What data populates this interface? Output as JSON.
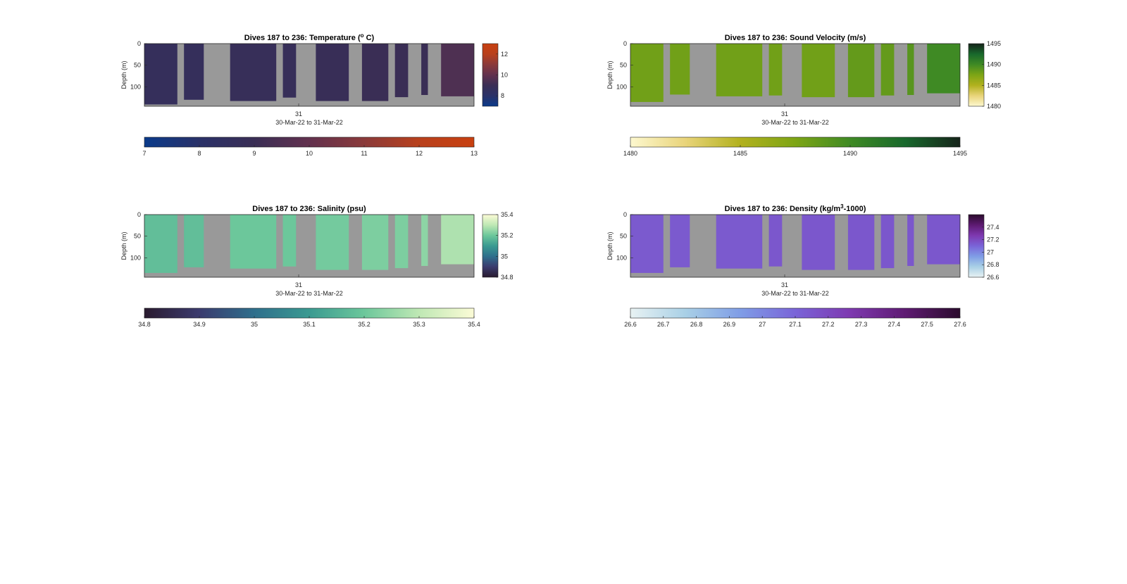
{
  "chart_data": [
    {
      "type": "heatmap",
      "title_main": "Dives 187 to 236: Temperature (",
      "title_sup": "o",
      "title_tail": " C)",
      "ylabel": "Depth (m)",
      "xlabel": "30-Mar-22 to 31-Mar-22",
      "x_tick_label": "31",
      "y_ticks": [
        0,
        50,
        100
      ],
      "ylim": [
        0,
        145
      ],
      "background": "#999999",
      "colormap": [
        "#0a3a8a",
        "#2a3168",
        "#3a2e55",
        "#62314e",
        "#8a3a3a",
        "#b8401c",
        "#c84010"
      ],
      "clim": [
        7,
        13
      ],
      "side_colorbar_ticks": [
        "8",
        "10",
        "12"
      ],
      "bottom_colorbar_ticks": [
        "7",
        "8",
        "9",
        "10",
        "11",
        "12",
        "13"
      ],
      "dives": [
        {
          "x0": 0.0,
          "x1": 0.1,
          "depth_max": 141,
          "value": 8.7
        },
        {
          "x0": 0.12,
          "x1": 0.18,
          "depth_max": 130,
          "value": 8.7
        },
        {
          "x0": 0.26,
          "x1": 0.4,
          "depth_max": 133,
          "value": 8.8
        },
        {
          "x0": 0.42,
          "x1": 0.46,
          "depth_max": 125,
          "value": 8.8
        },
        {
          "x0": 0.52,
          "x1": 0.62,
          "depth_max": 133,
          "value": 8.9
        },
        {
          "x0": 0.66,
          "x1": 0.74,
          "depth_max": 133,
          "value": 9.0
        },
        {
          "x0": 0.76,
          "x1": 0.8,
          "depth_max": 124,
          "value": 9.0
        },
        {
          "x0": 0.84,
          "x1": 0.86,
          "depth_max": 119,
          "value": 9.0
        },
        {
          "x0": 0.9,
          "x1": 1.0,
          "depth_max": 122,
          "value": 9.5
        }
      ]
    },
    {
      "type": "heatmap",
      "title_main": "Dives 187 to 236: Sound Velocity (m/s)",
      "title_sup": "",
      "title_tail": "",
      "ylabel": "Depth (m)",
      "xlabel": "30-Mar-22 to 31-Mar-22",
      "x_tick_label": "31",
      "y_ticks": [
        0,
        50,
        100
      ],
      "ylim": [
        0,
        145
      ],
      "background": "#999999",
      "colormap": [
        "#fdf8cf",
        "#e9d47a",
        "#b2b11e",
        "#7da515",
        "#3f8a24",
        "#18682c",
        "#16241a"
      ],
      "clim": [
        1480,
        1495
      ],
      "side_colorbar_ticks": [
        "1480",
        "1485",
        "1490",
        "1495"
      ],
      "bottom_colorbar_ticks": [
        "1480",
        "1485",
        "1490",
        "1495"
      ],
      "dives": [
        {
          "x0": 0.0,
          "x1": 0.1,
          "depth_max": 135,
          "value": 1488
        },
        {
          "x0": 0.12,
          "x1": 0.18,
          "depth_max": 118,
          "value": 1488
        },
        {
          "x0": 0.26,
          "x1": 0.4,
          "depth_max": 122,
          "value": 1488
        },
        {
          "x0": 0.42,
          "x1": 0.46,
          "depth_max": 120,
          "value": 1488
        },
        {
          "x0": 0.52,
          "x1": 0.62,
          "depth_max": 124,
          "value": 1488
        },
        {
          "x0": 0.66,
          "x1": 0.74,
          "depth_max": 124,
          "value": 1488.5
        },
        {
          "x0": 0.76,
          "x1": 0.8,
          "depth_max": 120,
          "value": 1488.5
        },
        {
          "x0": 0.84,
          "x1": 0.86,
          "depth_max": 119,
          "value": 1489
        },
        {
          "x0": 0.9,
          "x1": 1.0,
          "depth_max": 115,
          "value": 1490
        }
      ]
    },
    {
      "type": "heatmap",
      "title_main": "Dives 187 to 236: Salinity (psu)",
      "title_sup": "",
      "title_tail": "",
      "ylabel": "Depth (m)",
      "xlabel": "30-Mar-22 to 31-Mar-22",
      "x_tick_label": "31",
      "y_ticks": [
        0,
        50,
        100
      ],
      "ylim": [
        0,
        145
      ],
      "background": "#999999",
      "colormap": [
        "#2a1b2f",
        "#3b3b6e",
        "#2f6f8c",
        "#3a9a91",
        "#6cc79b",
        "#bfe8b4",
        "#fbfbd6"
      ],
      "clim": [
        34.8,
        35.4
      ],
      "side_colorbar_ticks": [
        "34.8",
        "35",
        "35.2",
        "35.4"
      ],
      "bottom_colorbar_ticks": [
        "34.8",
        "34.9",
        "35",
        "35.1",
        "35.2",
        "35.3",
        "35.4"
      ],
      "dives": [
        {
          "x0": 0.0,
          "x1": 0.1,
          "depth_max": 135,
          "value": 35.18
        },
        {
          "x0": 0.12,
          "x1": 0.18,
          "depth_max": 122,
          "value": 35.18
        },
        {
          "x0": 0.26,
          "x1": 0.4,
          "depth_max": 125,
          "value": 35.2
        },
        {
          "x0": 0.42,
          "x1": 0.46,
          "depth_max": 120,
          "value": 35.2
        },
        {
          "x0": 0.52,
          "x1": 0.62,
          "depth_max": 128,
          "value": 35.21
        },
        {
          "x0": 0.66,
          "x1": 0.74,
          "depth_max": 128,
          "value": 35.22
        },
        {
          "x0": 0.76,
          "x1": 0.8,
          "depth_max": 124,
          "value": 35.22
        },
        {
          "x0": 0.84,
          "x1": 0.86,
          "depth_max": 119,
          "value": 35.24
        },
        {
          "x0": 0.9,
          "x1": 1.0,
          "depth_max": 115,
          "value": 35.28
        }
      ]
    },
    {
      "type": "heatmap",
      "title_main": "Dives 187 to 236: Density (kg/m",
      "title_sup": "3",
      "title_tail": "-1000)",
      "ylabel": "Depth (m)",
      "xlabel": "30-Mar-22 to 31-Mar-22",
      "x_tick_label": "31",
      "y_ticks": [
        0,
        50,
        100
      ],
      "ylim": [
        0,
        145
      ],
      "background": "#999999",
      "colormap": [
        "#e8f2f3",
        "#a9d0e6",
        "#7f9de6",
        "#7a64d8",
        "#7e39b0",
        "#5e1a72",
        "#2b0b2d"
      ],
      "clim": [
        26.6,
        27.6
      ],
      "side_colorbar_ticks": [
        "26.6",
        "26.8",
        "27",
        "27.2",
        "27.4"
      ],
      "bottom_colorbar_ticks": [
        "26.6",
        "26.7",
        "26.8",
        "26.9",
        "27",
        "27.1",
        "27.2",
        "27.3",
        "27.4",
        "27.5",
        "27.6"
      ],
      "dives": [
        {
          "x0": 0.0,
          "x1": 0.1,
          "depth_max": 135,
          "value": 27.14
        },
        {
          "x0": 0.12,
          "x1": 0.18,
          "depth_max": 122,
          "value": 27.14
        },
        {
          "x0": 0.26,
          "x1": 0.4,
          "depth_max": 125,
          "value": 27.14
        },
        {
          "x0": 0.42,
          "x1": 0.46,
          "depth_max": 120,
          "value": 27.15
        },
        {
          "x0": 0.52,
          "x1": 0.62,
          "depth_max": 128,
          "value": 27.15
        },
        {
          "x0": 0.66,
          "x1": 0.74,
          "depth_max": 128,
          "value": 27.15
        },
        {
          "x0": 0.76,
          "x1": 0.8,
          "depth_max": 124,
          "value": 27.15
        },
        {
          "x0": 0.84,
          "x1": 0.86,
          "depth_max": 119,
          "value": 27.15
        },
        {
          "x0": 0.9,
          "x1": 1.0,
          "depth_max": 115,
          "value": 27.15
        }
      ]
    }
  ]
}
